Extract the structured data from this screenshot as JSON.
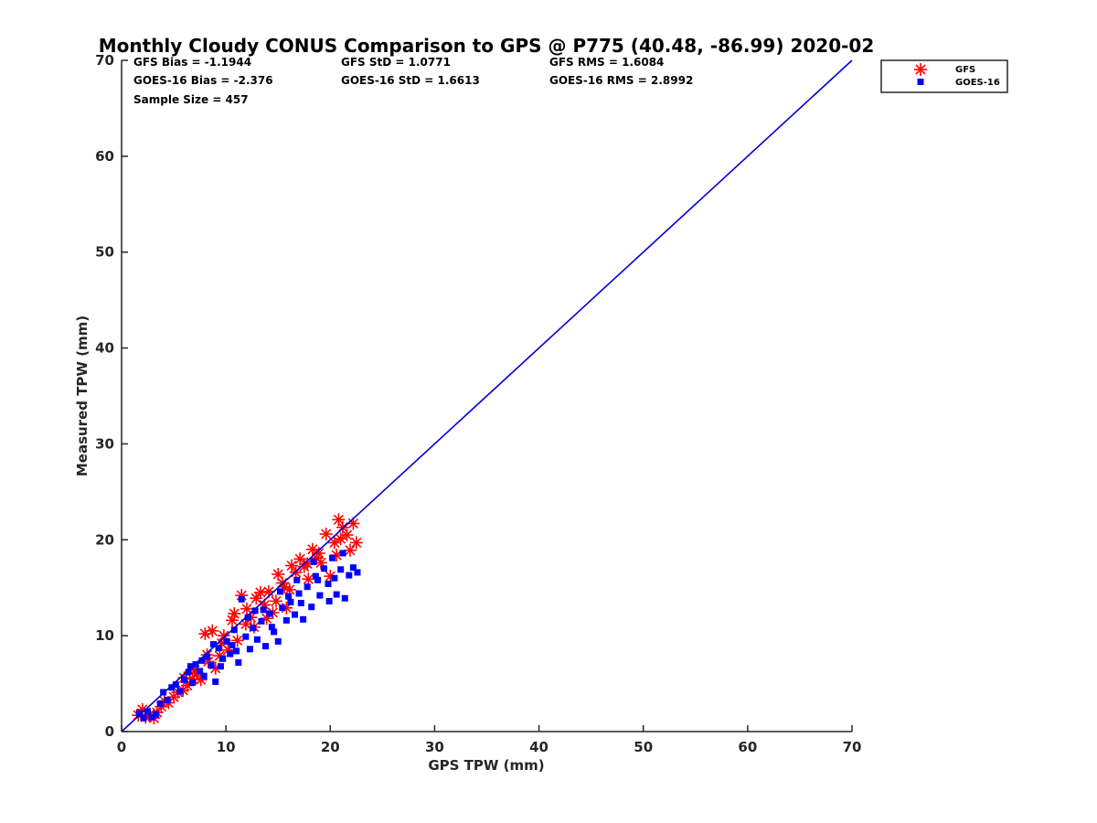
{
  "chart_data": {
    "type": "scatter",
    "title": "Monthly Cloudy CONUS Comparison to GPS @ P775 (40.48, -86.99) 2020-02",
    "xlabel": "GPS TPW (mm)",
    "ylabel": "Measured TPW (mm)",
    "xlim": [
      0,
      70
    ],
    "ylim": [
      0,
      70
    ],
    "xticks": [
      0,
      10,
      20,
      30,
      40,
      50,
      60,
      70
    ],
    "yticks": [
      0,
      10,
      20,
      30,
      40,
      50,
      60,
      70
    ],
    "grid": false,
    "legend_position": "top-right",
    "stats": [
      "GFS Bias = -1.1944",
      "GFS StD = 1.0771",
      "GFS RMS = 1.6084",
      "GOES-16 Bias = -2.376",
      "GOES-16 StD = 1.6613",
      "GOES-16 RMS = 2.8992",
      "Sample Size = 457"
    ],
    "reference_line": {
      "x": [
        0,
        70
      ],
      "y": [
        0,
        70
      ],
      "color": "#0000d6"
    },
    "series": [
      {
        "name": "GFS",
        "marker": "asterisk",
        "color": "#ff0000",
        "points": [
          [
            1.6,
            1.7
          ],
          [
            2.0,
            2.3
          ],
          [
            2.3,
            1.5
          ],
          [
            2.7,
            1.8
          ],
          [
            3.1,
            1.4
          ],
          [
            3.4,
            2.0
          ],
          [
            3.8,
            2.6
          ],
          [
            4.1,
            3.2
          ],
          [
            4.5,
            3.0
          ],
          [
            5.0,
            3.6
          ],
          [
            5.4,
            4.1
          ],
          [
            5.9,
            4.3
          ],
          [
            6.3,
            4.8
          ],
          [
            6.8,
            5.5
          ],
          [
            7.2,
            6.1
          ],
          [
            7.6,
            5.4
          ],
          [
            8.0,
            10.2
          ],
          [
            8.3,
            7.3
          ],
          [
            8.7,
            10.5
          ],
          [
            9.0,
            6.6
          ],
          [
            9.4,
            7.9
          ],
          [
            9.8,
            10.0
          ],
          [
            10.2,
            8.5
          ],
          [
            10.6,
            11.6
          ],
          [
            11.1,
            9.5
          ],
          [
            11.5,
            14.2
          ],
          [
            12.0,
            12.8
          ],
          [
            12.4,
            11.9
          ],
          [
            12.9,
            13.9
          ],
          [
            13.3,
            14.5
          ],
          [
            13.7,
            13.2
          ],
          [
            14.1,
            14.6
          ],
          [
            14.5,
            12.4
          ],
          [
            15.0,
            16.4
          ],
          [
            15.4,
            15.5
          ],
          [
            15.8,
            12.9
          ],
          [
            16.3,
            17.3
          ],
          [
            16.7,
            16.6
          ],
          [
            17.1,
            18.0
          ],
          [
            17.5,
            17.2
          ],
          [
            17.9,
            15.9
          ],
          [
            18.3,
            19.0
          ],
          [
            18.7,
            18.1
          ],
          [
            19.1,
            17.6
          ],
          [
            19.6,
            20.6
          ],
          [
            20.0,
            16.2
          ],
          [
            20.4,
            19.7
          ],
          [
            20.8,
            22.1
          ],
          [
            21.2,
            21.3
          ],
          [
            21.6,
            20.5
          ],
          [
            21.9,
            18.9
          ],
          [
            22.2,
            21.7
          ],
          [
            22.5,
            19.7
          ],
          [
            7.0,
            6.4
          ],
          [
            10.8,
            12.3
          ],
          [
            13.9,
            11.8
          ],
          [
            16.1,
            14.8
          ],
          [
            18.9,
            18.6
          ],
          [
            21.0,
            20.1
          ],
          [
            12.7,
            10.9
          ],
          [
            9.6,
            9.2
          ],
          [
            15.6,
            15.1
          ],
          [
            6.0,
            5.6
          ],
          [
            11.9,
            11.2
          ],
          [
            17.8,
            17.5
          ],
          [
            20.6,
            18.4
          ],
          [
            14.8,
            13.6
          ],
          [
            8.2,
            8.0
          ]
        ]
      },
      {
        "name": "GOES-16",
        "marker": "square",
        "color": "#0000ff",
        "points": [
          [
            1.7,
            1.9
          ],
          [
            2.1,
            1.4
          ],
          [
            2.5,
            2.1
          ],
          [
            2.9,
            1.5
          ],
          [
            3.3,
            1.8
          ],
          [
            3.7,
            2.9
          ],
          [
            4.0,
            4.1
          ],
          [
            4.4,
            3.3
          ],
          [
            4.8,
            4.6
          ],
          [
            5.2,
            4.9
          ],
          [
            5.6,
            4.2
          ],
          [
            6.0,
            5.4
          ],
          [
            6.4,
            6.2
          ],
          [
            6.8,
            5.1
          ],
          [
            7.1,
            7.0
          ],
          [
            7.5,
            6.3
          ],
          [
            7.9,
            5.8
          ],
          [
            8.2,
            7.8
          ],
          [
            8.6,
            6.9
          ],
          [
            9.0,
            5.2
          ],
          [
            9.3,
            8.7
          ],
          [
            9.7,
            7.6
          ],
          [
            10.1,
            9.4
          ],
          [
            10.4,
            8.1
          ],
          [
            10.8,
            10.6
          ],
          [
            11.2,
            7.2
          ],
          [
            11.5,
            13.8
          ],
          [
            11.9,
            9.9
          ],
          [
            12.3,
            8.6
          ],
          [
            12.6,
            10.8
          ],
          [
            13.0,
            9.6
          ],
          [
            13.4,
            11.5
          ],
          [
            13.8,
            8.9
          ],
          [
            14.2,
            12.3
          ],
          [
            14.6,
            10.4
          ],
          [
            15.0,
            9.4
          ],
          [
            15.4,
            12.9
          ],
          [
            15.8,
            11.6
          ],
          [
            16.2,
            13.5
          ],
          [
            16.6,
            12.2
          ],
          [
            17.0,
            14.4
          ],
          [
            17.4,
            11.7
          ],
          [
            17.8,
            15.1
          ],
          [
            18.2,
            13.0
          ],
          [
            18.6,
            16.2
          ],
          [
            19.0,
            14.2
          ],
          [
            19.4,
            17.0
          ],
          [
            19.8,
            15.4
          ],
          [
            20.2,
            18.1
          ],
          [
            20.6,
            14.3
          ],
          [
            21.0,
            16.9
          ],
          [
            21.4,
            13.9
          ],
          [
            21.8,
            16.3
          ],
          [
            22.2,
            17.1
          ],
          [
            22.6,
            16.6
          ],
          [
            6.6,
            6.8
          ],
          [
            8.8,
            9.1
          ],
          [
            10.6,
            9.0
          ],
          [
            12.1,
            11.9
          ],
          [
            13.6,
            12.7
          ],
          [
            15.2,
            14.6
          ],
          [
            16.8,
            15.8
          ],
          [
            18.4,
            17.7
          ],
          [
            19.9,
            13.6
          ],
          [
            21.2,
            18.6
          ],
          [
            9.5,
            6.8
          ],
          [
            11.0,
            8.4
          ],
          [
            14.4,
            10.9
          ],
          [
            17.2,
            13.4
          ],
          [
            20.4,
            16.0
          ],
          [
            7.7,
            7.4
          ],
          [
            12.8,
            12.6
          ],
          [
            16.0,
            14.1
          ],
          [
            18.8,
            15.8
          ]
        ]
      }
    ]
  }
}
